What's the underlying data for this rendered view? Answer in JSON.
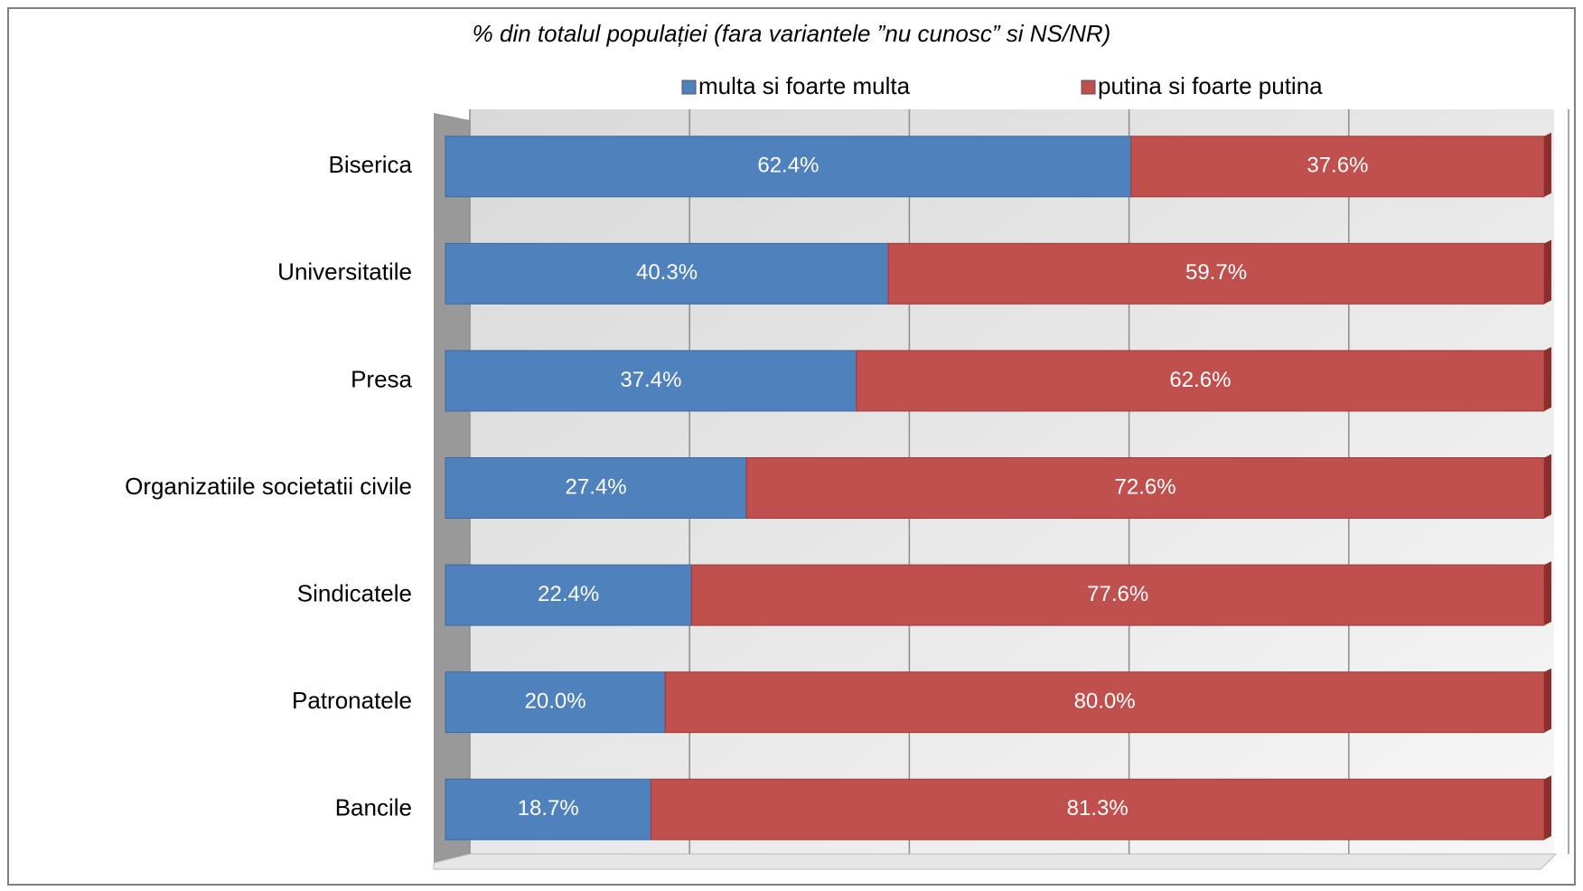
{
  "chart_data": {
    "type": "bar",
    "orientation": "horizontal",
    "stacked": true,
    "title": "% din totalul populației (fara variantele ”nu cunosc” si NS/NR)",
    "categories": [
      "Biserica",
      "Universitatile",
      "Presa",
      "Organizatiile societatii civile",
      "Sindicatele",
      "Patronatele",
      "Bancile"
    ],
    "series": [
      {
        "name": "multa si foarte multa",
        "color": "#4f81bd",
        "values": [
          62.4,
          40.3,
          37.4,
          27.4,
          22.4,
          20.0,
          18.7
        ],
        "value_labels": [
          "62.4%",
          "40.3%",
          "37.4%",
          "27.4%",
          "22.4%",
          "20.0%",
          "18.7%"
        ]
      },
      {
        "name": "putina si foarte putina",
        "color": "#c0504d",
        "values": [
          37.6,
          59.7,
          62.6,
          72.6,
          77.6,
          80.0,
          81.3
        ],
        "value_labels": [
          "37.6%",
          "59.7%",
          "62.6%",
          "72.6%",
          "77.6%",
          "80.0%",
          "81.3%"
        ]
      }
    ],
    "xlim": [
      0,
      100
    ],
    "xticks": [
      0,
      20,
      40,
      60,
      80,
      100
    ],
    "grid": true,
    "legend": "top"
  }
}
